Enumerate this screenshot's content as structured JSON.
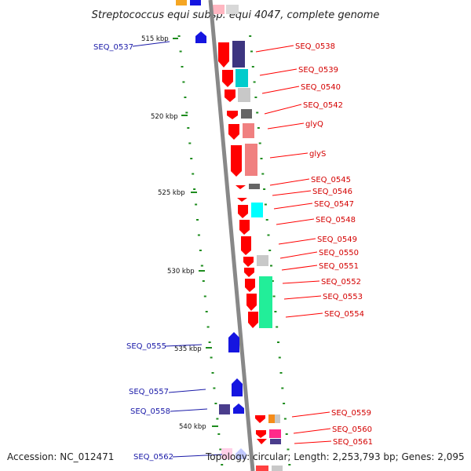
{
  "title": "Streptococcus equi subsp. equi 4047, complete genome",
  "accession_text": "Accession: NC_012471",
  "summary_text": "Topology: circular; Length: 2,253,793 bp; Genes: 2,095",
  "colors": {
    "backbone": "#888888",
    "tick": "#1e8c1e",
    "forward_gene": "#1515e0",
    "reverse_gene": "#ff0000",
    "label_red": "#d40000",
    "label_blue": "#1a1aa8"
  },
  "kbp_ticks": [
    {
      "position_kbp": 515,
      "label": "515 kbp"
    },
    {
      "position_kbp": 520,
      "label": "520 kbp"
    },
    {
      "position_kbp": 525,
      "label": "525 kbp"
    },
    {
      "position_kbp": 530,
      "label": "530 kbp"
    },
    {
      "position_kbp": 535,
      "label": "535 kbp"
    },
    {
      "position_kbp": 540,
      "label": "540 kbp"
    }
  ],
  "reverse_gene_labels": [
    "SEQ_0538",
    "SEQ_0539",
    "SEQ_0540",
    "SEQ_0542",
    "glyQ",
    "glyS",
    "SEQ_0545",
    "SEQ_0546",
    "SEQ_0547",
    "SEQ_0548",
    "SEQ_0549",
    "SEQ_0550",
    "SEQ_0551",
    "SEQ_0552",
    "SEQ_0553",
    "SEQ_0554",
    "SEQ_0559",
    "SEQ_0560",
    "SEQ_0561"
  ],
  "forward_gene_labels": [
    "SEQ_0537",
    "SEQ_0555",
    "SEQ_0557",
    "SEQ_0558",
    "SEQ_0562"
  ]
}
